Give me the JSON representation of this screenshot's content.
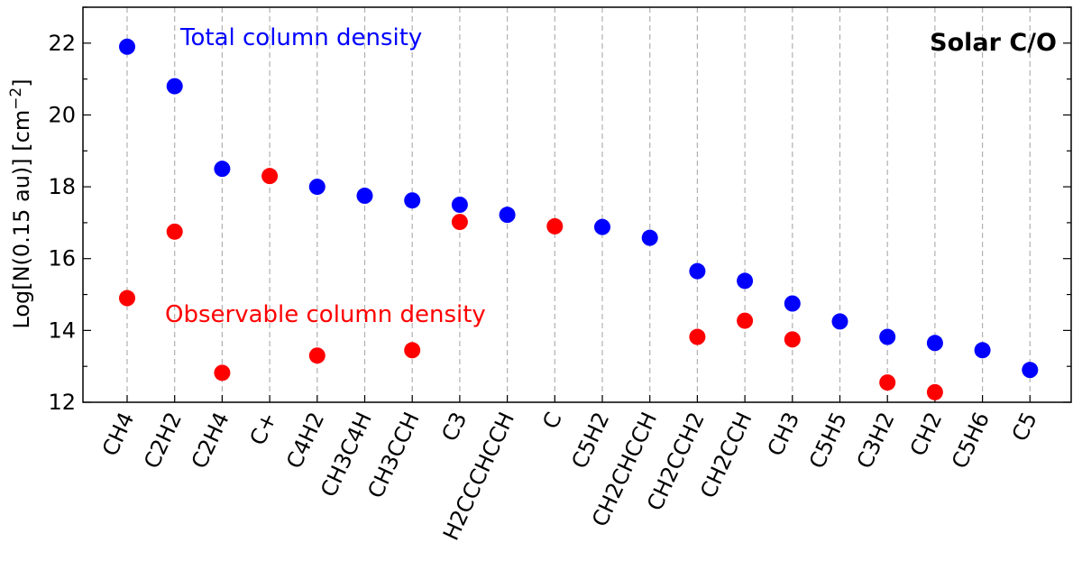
{
  "chart_data": {
    "type": "scatter",
    "title": "Solar C/O",
    "ylabel_main": "Log[N(0.15 au)] [cm",
    "ylabel_sup": "−2",
    "ylabel_end": "]",
    "xlabel": "",
    "ylim": [
      12,
      23
    ],
    "yticks": [
      "12",
      "14",
      "16",
      "18",
      "20",
      "22"
    ],
    "grid": "vertical dashed lines at each category",
    "categories": [
      "CH4",
      "C2H2",
      "C2H4",
      "C+",
      "C4H2",
      "CH3C4H",
      "CH3CCH",
      "C3",
      "H2CCCHCCH",
      "C",
      "C5H2",
      "CH2CHCCH",
      "CH2CCH2",
      "CH2CCH",
      "CH3",
      "C5H5",
      "C3H2",
      "CH2",
      "C5H6",
      "C5"
    ],
    "series": [
      {
        "name": "Total column density",
        "color": "#0000ff",
        "values": [
          21.9,
          20.8,
          18.5,
          null,
          18.0,
          17.75,
          17.62,
          17.5,
          17.22,
          null,
          16.88,
          16.58,
          15.65,
          15.38,
          14.75,
          14.25,
          13.82,
          13.65,
          13.45,
          12.9
        ]
      },
      {
        "name": "Observable column density",
        "color": "#ff0000",
        "values": [
          14.9,
          16.75,
          12.82,
          18.3,
          13.3,
          null,
          13.45,
          17.02,
          null,
          16.9,
          null,
          null,
          13.82,
          14.27,
          13.75,
          null,
          12.55,
          12.28,
          null,
          null
        ]
      }
    ],
    "legend_placement": "inline text labels near top-left and mid-left"
  }
}
